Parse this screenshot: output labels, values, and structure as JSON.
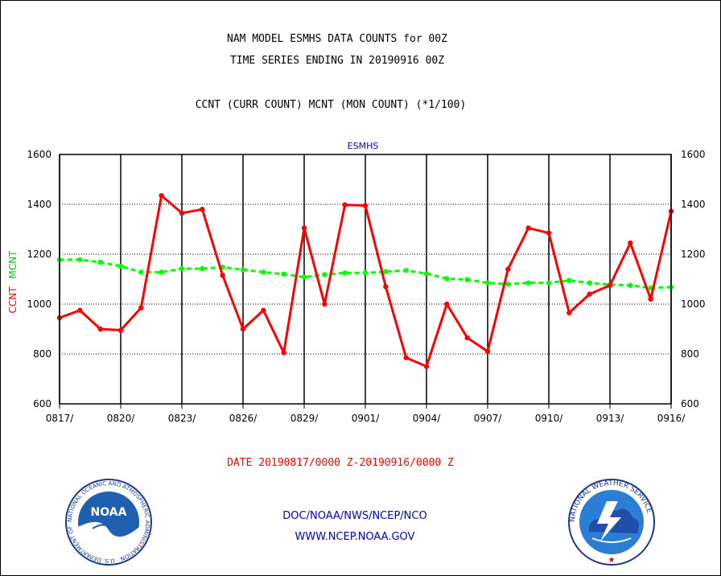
{
  "header": {
    "title_line1": "NAM MODEL ESMHS DATA COUNTS for 00Z",
    "title_line2": "TIME SERIES ENDING IN 20190916 00Z",
    "subtitle": "CCNT (CURR COUNT) MCNT (MON COUNT) (*1/100)"
  },
  "footer": {
    "date_range": "DATE 20190817/0000 Z-20190916/0000 Z",
    "org_path": "DOC/NOAA/NWS/NCEP/NCO",
    "website": "WWW.NCEP.NOAA.GOV"
  },
  "logos": {
    "left": {
      "center_text": "NOAA",
      "ring_text": "NATIONAL OCEANIC AND ATMOSPHERIC ADMINISTRATION · U.S. DEPARTMENT OF COMMERCE"
    },
    "right": {
      "ring_text": "NATIONAL WEATHER SERVICE"
    }
  },
  "colors": {
    "ccnt": "#ff0000",
    "mcnt": "#00ff00",
    "text": "#000000",
    "panel_title": "#0000cc",
    "footer_blue": "#0000cc",
    "footer_red": "#ff0000"
  },
  "chart_data": {
    "type": "line",
    "title": "ESMHS",
    "ylabel_left": [
      "CCNT",
      "MCNT"
    ],
    "ylim": [
      600,
      1600
    ],
    "yticks": [
      600,
      800,
      1000,
      1200,
      1400,
      1600
    ],
    "x_tick_labels": [
      "0817/",
      "0820/",
      "0823/",
      "0826/",
      "0829/",
      "0901/",
      "0904/",
      "0907/",
      "0910/",
      "0913/",
      "0916/"
    ],
    "x_tick_index": [
      0,
      3,
      6,
      9,
      12,
      15,
      18,
      21,
      24,
      27,
      30
    ],
    "grid": true,
    "x_dates": [
      "0817",
      "0818",
      "0819",
      "0820",
      "0821",
      "0822",
      "0823",
      "0824",
      "0825",
      "0826",
      "0827",
      "0828",
      "0829",
      "0830",
      "0831",
      "0901",
      "0902",
      "0903",
      "0904",
      "0905",
      "0906",
      "0907",
      "0908",
      "0909",
      "0910",
      "0911",
      "0912",
      "0913",
      "0914",
      "0915",
      "0916"
    ],
    "series": [
      {
        "name": "CCNT",
        "color": "#ff0000",
        "style": "solid",
        "values": [
          945,
          975,
          900,
          895,
          985,
          1435,
          1365,
          1380,
          1115,
          900,
          975,
          805,
          1305,
          1000,
          1398,
          1395,
          1070,
          785,
          750,
          1000,
          865,
          810,
          1140,
          1305,
          1285,
          965,
          1040,
          1075,
          1245,
          1020,
          1372
        ]
      },
      {
        "name": "MCNT",
        "color": "#00ff00",
        "style": "dashed",
        "values": [
          1178,
          1178,
          1168,
          1152,
          1128,
          1128,
          1142,
          1142,
          1148,
          1138,
          1128,
          1120,
          1108,
          1118,
          1125,
          1125,
          1130,
          1135,
          1122,
          1102,
          1098,
          1085,
          1080,
          1085,
          1085,
          1095,
          1085,
          1078,
          1075,
          1065,
          1068
        ]
      }
    ]
  }
}
